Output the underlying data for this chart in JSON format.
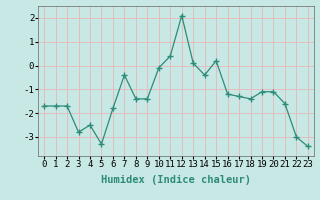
{
  "x": [
    0,
    1,
    2,
    3,
    4,
    5,
    6,
    7,
    8,
    9,
    10,
    11,
    12,
    13,
    14,
    15,
    16,
    17,
    18,
    19,
    20,
    21,
    22,
    23
  ],
  "y": [
    -1.7,
    -1.7,
    -1.7,
    -2.8,
    -2.5,
    -3.3,
    -1.8,
    -0.4,
    -1.4,
    -1.4,
    -0.1,
    0.4,
    2.1,
    0.1,
    -0.4,
    0.2,
    -1.2,
    -1.3,
    -1.4,
    -1.1,
    -1.1,
    -1.6,
    -3.0,
    -3.4
  ],
  "line_color": "#2E8B78",
  "marker": "+",
  "marker_size": 4,
  "bg_color": "#C8E8E5",
  "grid_color": "#E8B8B8",
  "xlabel": "Humidex (Indice chaleur)",
  "xlabel_fontsize": 7.5,
  "tick_fontsize": 6.5,
  "ylim": [
    -3.8,
    2.5
  ],
  "xlim": [
    -0.5,
    23.5
  ],
  "yticks": [
    -3,
    -2,
    -1,
    0,
    1,
    2
  ],
  "xticks": [
    0,
    1,
    2,
    3,
    4,
    5,
    6,
    7,
    8,
    9,
    10,
    11,
    12,
    13,
    14,
    15,
    16,
    17,
    18,
    19,
    20,
    21,
    22,
    23
  ]
}
